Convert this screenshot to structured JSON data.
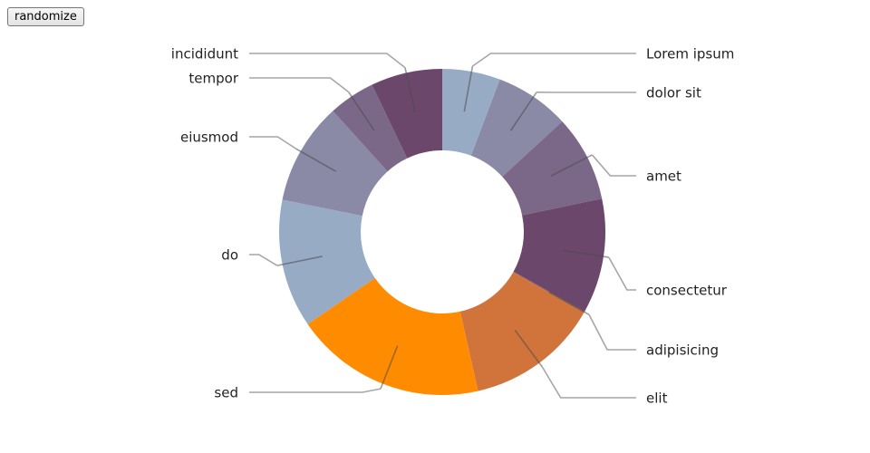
{
  "controls": {
    "randomize_label": "randomize"
  },
  "chart_data": {
    "type": "pie",
    "variant": "donut",
    "start": "top",
    "direction": "clockwise",
    "legend": "none",
    "categories": [
      "Lorem ipsum",
      "dolor sit",
      "amet",
      "consectetur",
      "adipisicing",
      "elit",
      "sed",
      "do",
      "eiusmod",
      "tempor",
      "incididunt"
    ],
    "values": [
      0.0525,
      0.0676,
      0.0782,
      0.1039,
      0.0012,
      0.1209,
      0.1731,
      0.1162,
      0.0925,
      0.0421,
      0.0647
    ],
    "colors": [
      "#98abc5",
      "#8a89a6",
      "#7b6888",
      "#6b486b",
      "#a05d56",
      "#d0743c",
      "#ff8c00",
      "#98abc5",
      "#8a89a6",
      "#7b6888",
      "#6b486b"
    ]
  }
}
